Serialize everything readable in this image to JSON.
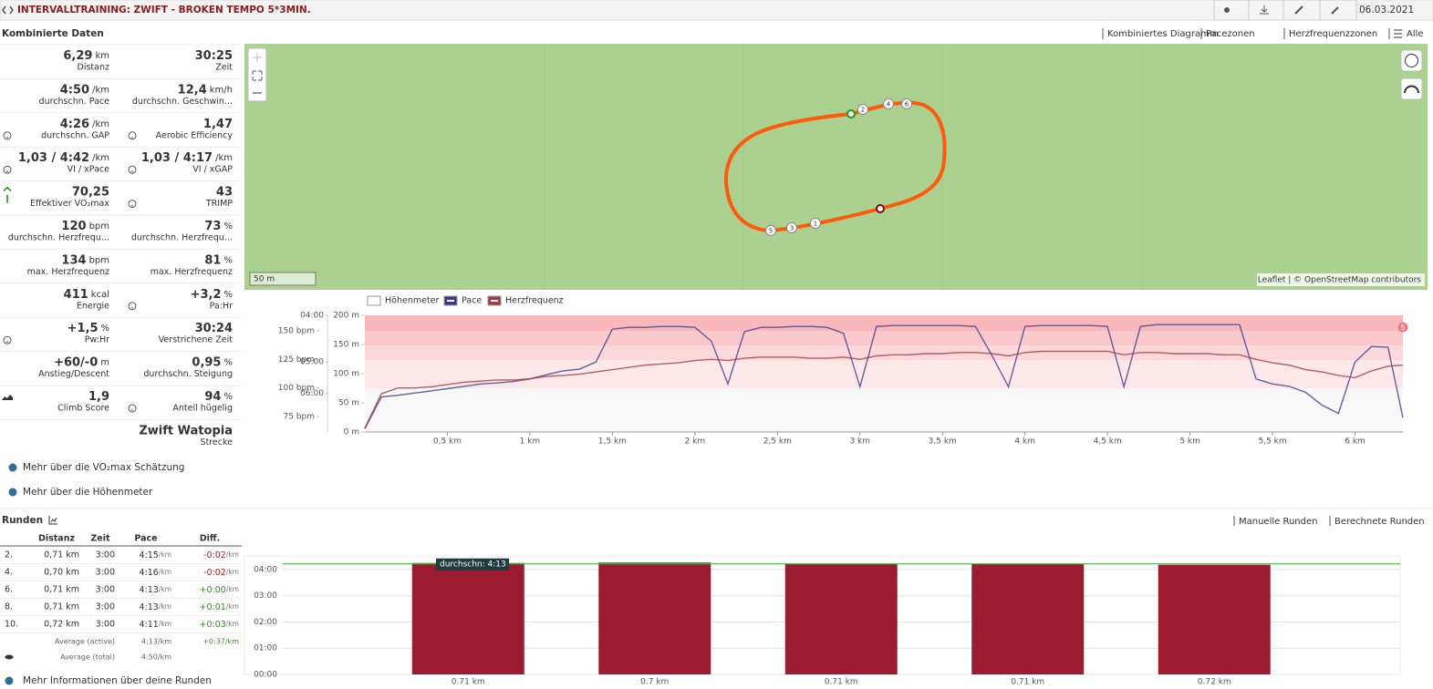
{
  "header": {
    "title": "INTERVALLTRAINING: ZWIFT - BROKEN TEMPO 5*3MIN.",
    "date": "06.03.2021"
  },
  "section": {
    "title": "Kombinierte Daten",
    "tabs": [
      "Kombiniertes Diagramm",
      "Pacezonen",
      "Herzfrequenzzonen",
      "Alle"
    ]
  },
  "stats": [
    [
      {
        "value": "6,29",
        "unit": "km",
        "label": "Distanz"
      },
      {
        "value": "30:25",
        "label": "Zeit"
      }
    ],
    [
      {
        "value": "4:50",
        "unit": "/km",
        "label": "durchschn. Pace"
      },
      {
        "value": "12,4",
        "unit": "km/h",
        "label": "durchschn. Geschwin..."
      }
    ],
    [
      {
        "value": "4:26",
        "unit": "/km",
        "label": "durchschn. GAP",
        "icon": "help"
      },
      {
        "value": "1,47",
        "label": "Aerobic Efficiency",
        "icon": "help"
      }
    ],
    [
      {
        "value": "1,03 / 4:42",
        "unit": "/km",
        "label": "VI / xPace",
        "icon": "help"
      },
      {
        "value": "1,03 / 4:17",
        "unit": "/km",
        "label": "VI / xGAP",
        "icon": "help"
      }
    ],
    [
      {
        "value": "70,25",
        "label": "Effektiver VO₂max",
        "icon": "arrow-up"
      },
      {
        "value": "43",
        "label": "TRIMP",
        "icon": "help"
      }
    ],
    [
      {
        "value": "120",
        "unit": "bpm",
        "label": "durchschn. Herzfrequ..."
      },
      {
        "value": "73",
        "unit": "%",
        "label": "durchschn. Herzfrequ..."
      }
    ],
    [
      {
        "value": "134",
        "unit": "bpm",
        "label": "max. Herzfrequenz"
      },
      {
        "value": "81",
        "unit": "%",
        "label": "max. Herzfrequenz"
      }
    ],
    [
      {
        "value": "411",
        "unit": "kcal",
        "label": "Energie"
      },
      {
        "value": "+3,2",
        "unit": "%",
        "label": "Pa:Hr",
        "icon": "help"
      }
    ],
    [
      {
        "value": "+1,5",
        "unit": "%",
        "label": "Pw:Hr",
        "icon": "help"
      },
      {
        "value": "30:24",
        "label": "Verstrichene Zeit"
      }
    ],
    [
      {
        "value": "+60/-0",
        "unit": "m",
        "label": "Anstieg/Descent"
      },
      {
        "value": "0,95",
        "unit": "%",
        "label": "durchschn. Steigung"
      }
    ],
    [
      {
        "value": "1,9",
        "label": "Climb Score",
        "icon": "climb"
      },
      {
        "value": "94",
        "unit": "%",
        "label": "Anteil hügelig",
        "icon": "help"
      }
    ],
    [
      null,
      {
        "value": "Zwift Watopia",
        "label": "Strecke"
      }
    ]
  ],
  "links": [
    "Mehr über die VO₂max Schätzung",
    "Mehr über die Höhenmeter"
  ],
  "map": {
    "scale": "50 m",
    "attribution": "Leaflet | © OpenStreetMap contributors",
    "markers": [
      "1",
      "2",
      "3",
      "4",
      "5",
      "6"
    ]
  },
  "chart_data": [
    {
      "type": "line",
      "x": [
        0,
        0.1,
        0.2,
        0.3,
        0.4,
        0.5,
        0.6,
        0.7,
        0.8,
        0.9,
        1.0,
        1.1,
        1.2,
        1.3,
        1.4,
        1.5,
        1.6,
        1.7,
        1.8,
        1.9,
        2.0,
        2.1,
        2.2,
        2.3,
        2.4,
        2.5,
        2.6,
        2.7,
        2.8,
        2.9,
        3.0,
        3.1,
        3.2,
        3.3,
        3.4,
        3.5,
        3.6,
        3.7,
        3.8,
        3.9,
        4.0,
        4.1,
        4.2,
        4.3,
        4.4,
        4.5,
        4.6,
        4.7,
        4.8,
        4.9,
        5.0,
        5.1,
        5.2,
        5.3,
        5.4,
        5.5,
        5.6,
        5.7,
        5.8,
        5.9,
        6.0,
        6.1,
        6.2,
        6.29
      ],
      "series": [
        {
          "name": "Höhenmeter",
          "color": "#ffffff",
          "axis": "y3",
          "values": [
            null,
            null,
            null,
            null,
            null,
            null,
            null,
            null,
            null,
            null,
            null,
            null,
            null,
            null,
            null,
            null,
            null,
            null,
            null,
            null,
            null,
            null,
            null,
            null,
            null,
            null,
            null,
            null,
            null,
            null,
            null,
            null,
            null,
            null,
            null,
            null,
            null,
            null,
            null,
            null,
            null,
            null,
            null,
            null,
            null,
            null,
            null,
            null,
            null,
            null,
            null,
            null,
            null,
            null,
            null,
            null,
            null,
            null,
            null,
            null,
            null,
            null,
            null,
            null
          ]
        },
        {
          "name": "Pace",
          "color": "#3b3d8c",
          "axis": "y2",
          "values": [
            467,
            369,
            365,
            360,
            355,
            350,
            345,
            340,
            338,
            335,
            330,
            322,
            315,
            312,
            300,
            255,
            253,
            253,
            252,
            252,
            253,
            270,
            340,
            258,
            253,
            253,
            252,
            252,
            253,
            260,
            346,
            252,
            251,
            251,
            251,
            251,
            251,
            252,
            290,
            346,
            252,
            251,
            251,
            251,
            251,
            252,
            346,
            252,
            250,
            250,
            250,
            250,
            250,
            250,
            330,
            340,
            345,
            358,
            390,
            414,
            300,
            277,
            278,
            428
          ]
        },
        {
          "name": "Herzfrequenz",
          "color": "#a33a44",
          "values": [
            65,
            95,
            100,
            100,
            101,
            103,
            105,
            106,
            107,
            107,
            108,
            110,
            111,
            112,
            114,
            116,
            118,
            120,
            121,
            122,
            124,
            125,
            124,
            126,
            127,
            127,
            127,
            126,
            126,
            127,
            125,
            128,
            129,
            129,
            130,
            130,
            131,
            131,
            130,
            128,
            131,
            132,
            132,
            132,
            132,
            132,
            129,
            131,
            131,
            130,
            130,
            130,
            129,
            129,
            125,
            122,
            120,
            116,
            114,
            111,
            109,
            115,
            119,
            120
          ]
        }
      ],
      "xlim": [
        0,
        6.29
      ],
      "xticks": [
        {
          "value": 0.5,
          "label": "0,5 km"
        },
        {
          "value": 1,
          "label": "1 km"
        },
        {
          "value": 1.5,
          "label": "1,5 km"
        },
        {
          "value": 2,
          "label": "2 km"
        },
        {
          "value": 2.5,
          "label": "2,5 km"
        },
        {
          "value": 3,
          "label": "3 km"
        },
        {
          "value": 3.5,
          "label": "3,5 km"
        },
        {
          "value": 4,
          "label": "4 km"
        },
        {
          "value": 4.5,
          "label": "4,5 km"
        },
        {
          "value": 5,
          "label": "5 km"
        },
        {
          "value": 5.5,
          "label": "5,5 km"
        },
        {
          "value": 6,
          "label": "6 km"
        }
      ],
      "ylim": [
        61.5,
        163.5
      ],
      "yticks": [
        {
          "value": 150,
          "label": "150 bpm"
        },
        {
          "value": 125,
          "label": "125 bpm"
        },
        {
          "value": 100,
          "label": "100 bpm"
        },
        {
          "value": 75,
          "label": "75 bpm"
        }
      ],
      "y2lim": [
        480,
        240
      ],
      "y2scale": "inverse",
      "y2ticks": [
        {
          "value": 240,
          "label": "04:00"
        },
        {
          "value": 300,
          "label": "05:00"
        },
        {
          "value": 360,
          "label": "06:00"
        }
      ],
      "y3lim": [
        0,
        200
      ],
      "y3ticks": [
        {
          "value": 200,
          "label": "200 m"
        },
        {
          "value": 150,
          "label": "150 m"
        },
        {
          "value": 100,
          "label": "100 m"
        },
        {
          "value": 50,
          "label": "50 m"
        },
        {
          "value": 0,
          "label": "0 m"
        }
      ],
      "zone_badge": "5"
    },
    {
      "type": "bar",
      "categories": [
        "0.71 km",
        "0.7 km",
        "0.71 km",
        "0.71 km",
        "0.72 km"
      ],
      "values": [
        255,
        256,
        253,
        253,
        251
      ],
      "color": "#9b1b30",
      "ylim": [
        0,
        267
      ],
      "yticks": [
        {
          "value": 0,
          "label": "00:00"
        },
        {
          "value": 60,
          "label": "01:00"
        },
        {
          "value": 120,
          "label": "02:00"
        },
        {
          "value": 180,
          "label": "03:00"
        },
        {
          "value": 240,
          "label": "04:00"
        }
      ],
      "grid": true,
      "average": {
        "value": 253,
        "label": "durchschn: 4:13",
        "color": "#4caf50"
      }
    }
  ],
  "laps": {
    "title": "Runden",
    "tabs": [
      "Manuelle Runden",
      "Berechnete Runden"
    ],
    "columns": [
      "Distanz",
      "Zeit",
      "Pace",
      "Diff."
    ],
    "rows": [
      {
        "nr": "2.",
        "distance": "0,71 km",
        "time": "3:00",
        "pace": "4:15",
        "pace_unit": "/km",
        "diff": "-0:02",
        "diff_unit": "/km"
      },
      {
        "nr": "4.",
        "distance": "0,70 km",
        "time": "3:00",
        "pace": "4:16",
        "pace_unit": "/km",
        "diff": "-0:02",
        "diff_unit": "/km"
      },
      {
        "nr": "6.",
        "distance": "0,71 km",
        "time": "3:00",
        "pace": "4:13",
        "pace_unit": "/km",
        "diff": "+0:00",
        "diff_unit": "/km"
      },
      {
        "nr": "8.",
        "distance": "0,71 km",
        "time": "3:00",
        "pace": "4:13",
        "pace_unit": "/km",
        "diff": "+0:01",
        "diff_unit": "/km"
      },
      {
        "nr": "10.",
        "distance": "0,72 km",
        "time": "3:00",
        "pace": "4:11",
        "pace_unit": "/km",
        "diff": "+0:03",
        "diff_unit": "/km"
      }
    ],
    "footer": [
      {
        "label": "Average (active)",
        "pace": "4:13/km",
        "diff": "+0:37/km"
      },
      {
        "label": "Average (total)",
        "pace": "4:50/km"
      }
    ],
    "more": "Mehr Informationen über deine Runden"
  }
}
